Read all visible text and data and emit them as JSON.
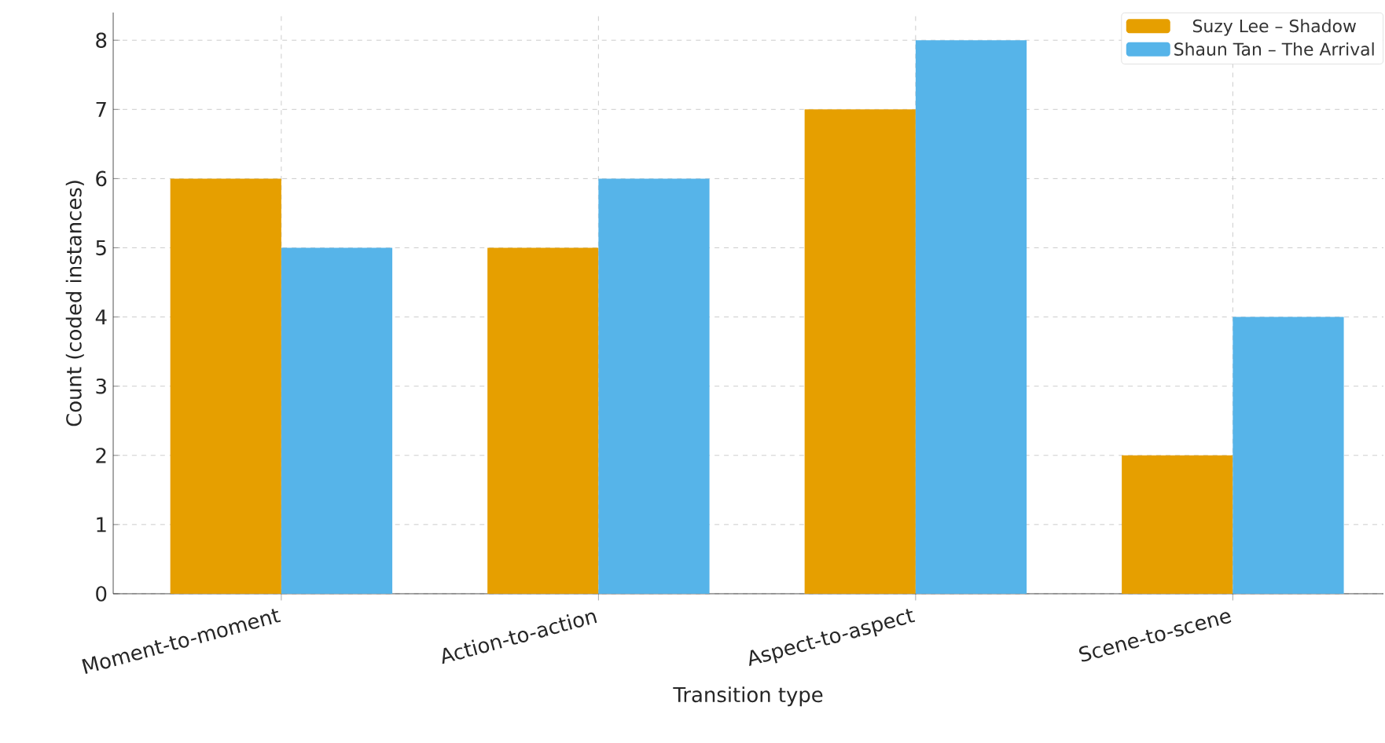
{
  "chart_data": {
    "type": "bar",
    "xlabel": "Transition type",
    "ylabel": "Count (coded instances)",
    "categories": [
      "Moment-to-moment",
      "Action-to-action",
      "Aspect-to-aspect",
      "Scene-to-scene"
    ],
    "series": [
      {
        "name": "Suzy Lee – Shadow",
        "color": "#e69f00",
        "values": [
          6,
          5,
          7,
          2
        ]
      },
      {
        "name": "Shaun Tan – The Arrival",
        "color": "#56b4e9",
        "values": [
          5,
          6,
          8,
          4
        ]
      }
    ],
    "ylim": [
      0,
      8.4
    ],
    "yticks": [
      0,
      1,
      2,
      3,
      4,
      5,
      6,
      7,
      8
    ],
    "grid": true,
    "legend": "top right"
  }
}
